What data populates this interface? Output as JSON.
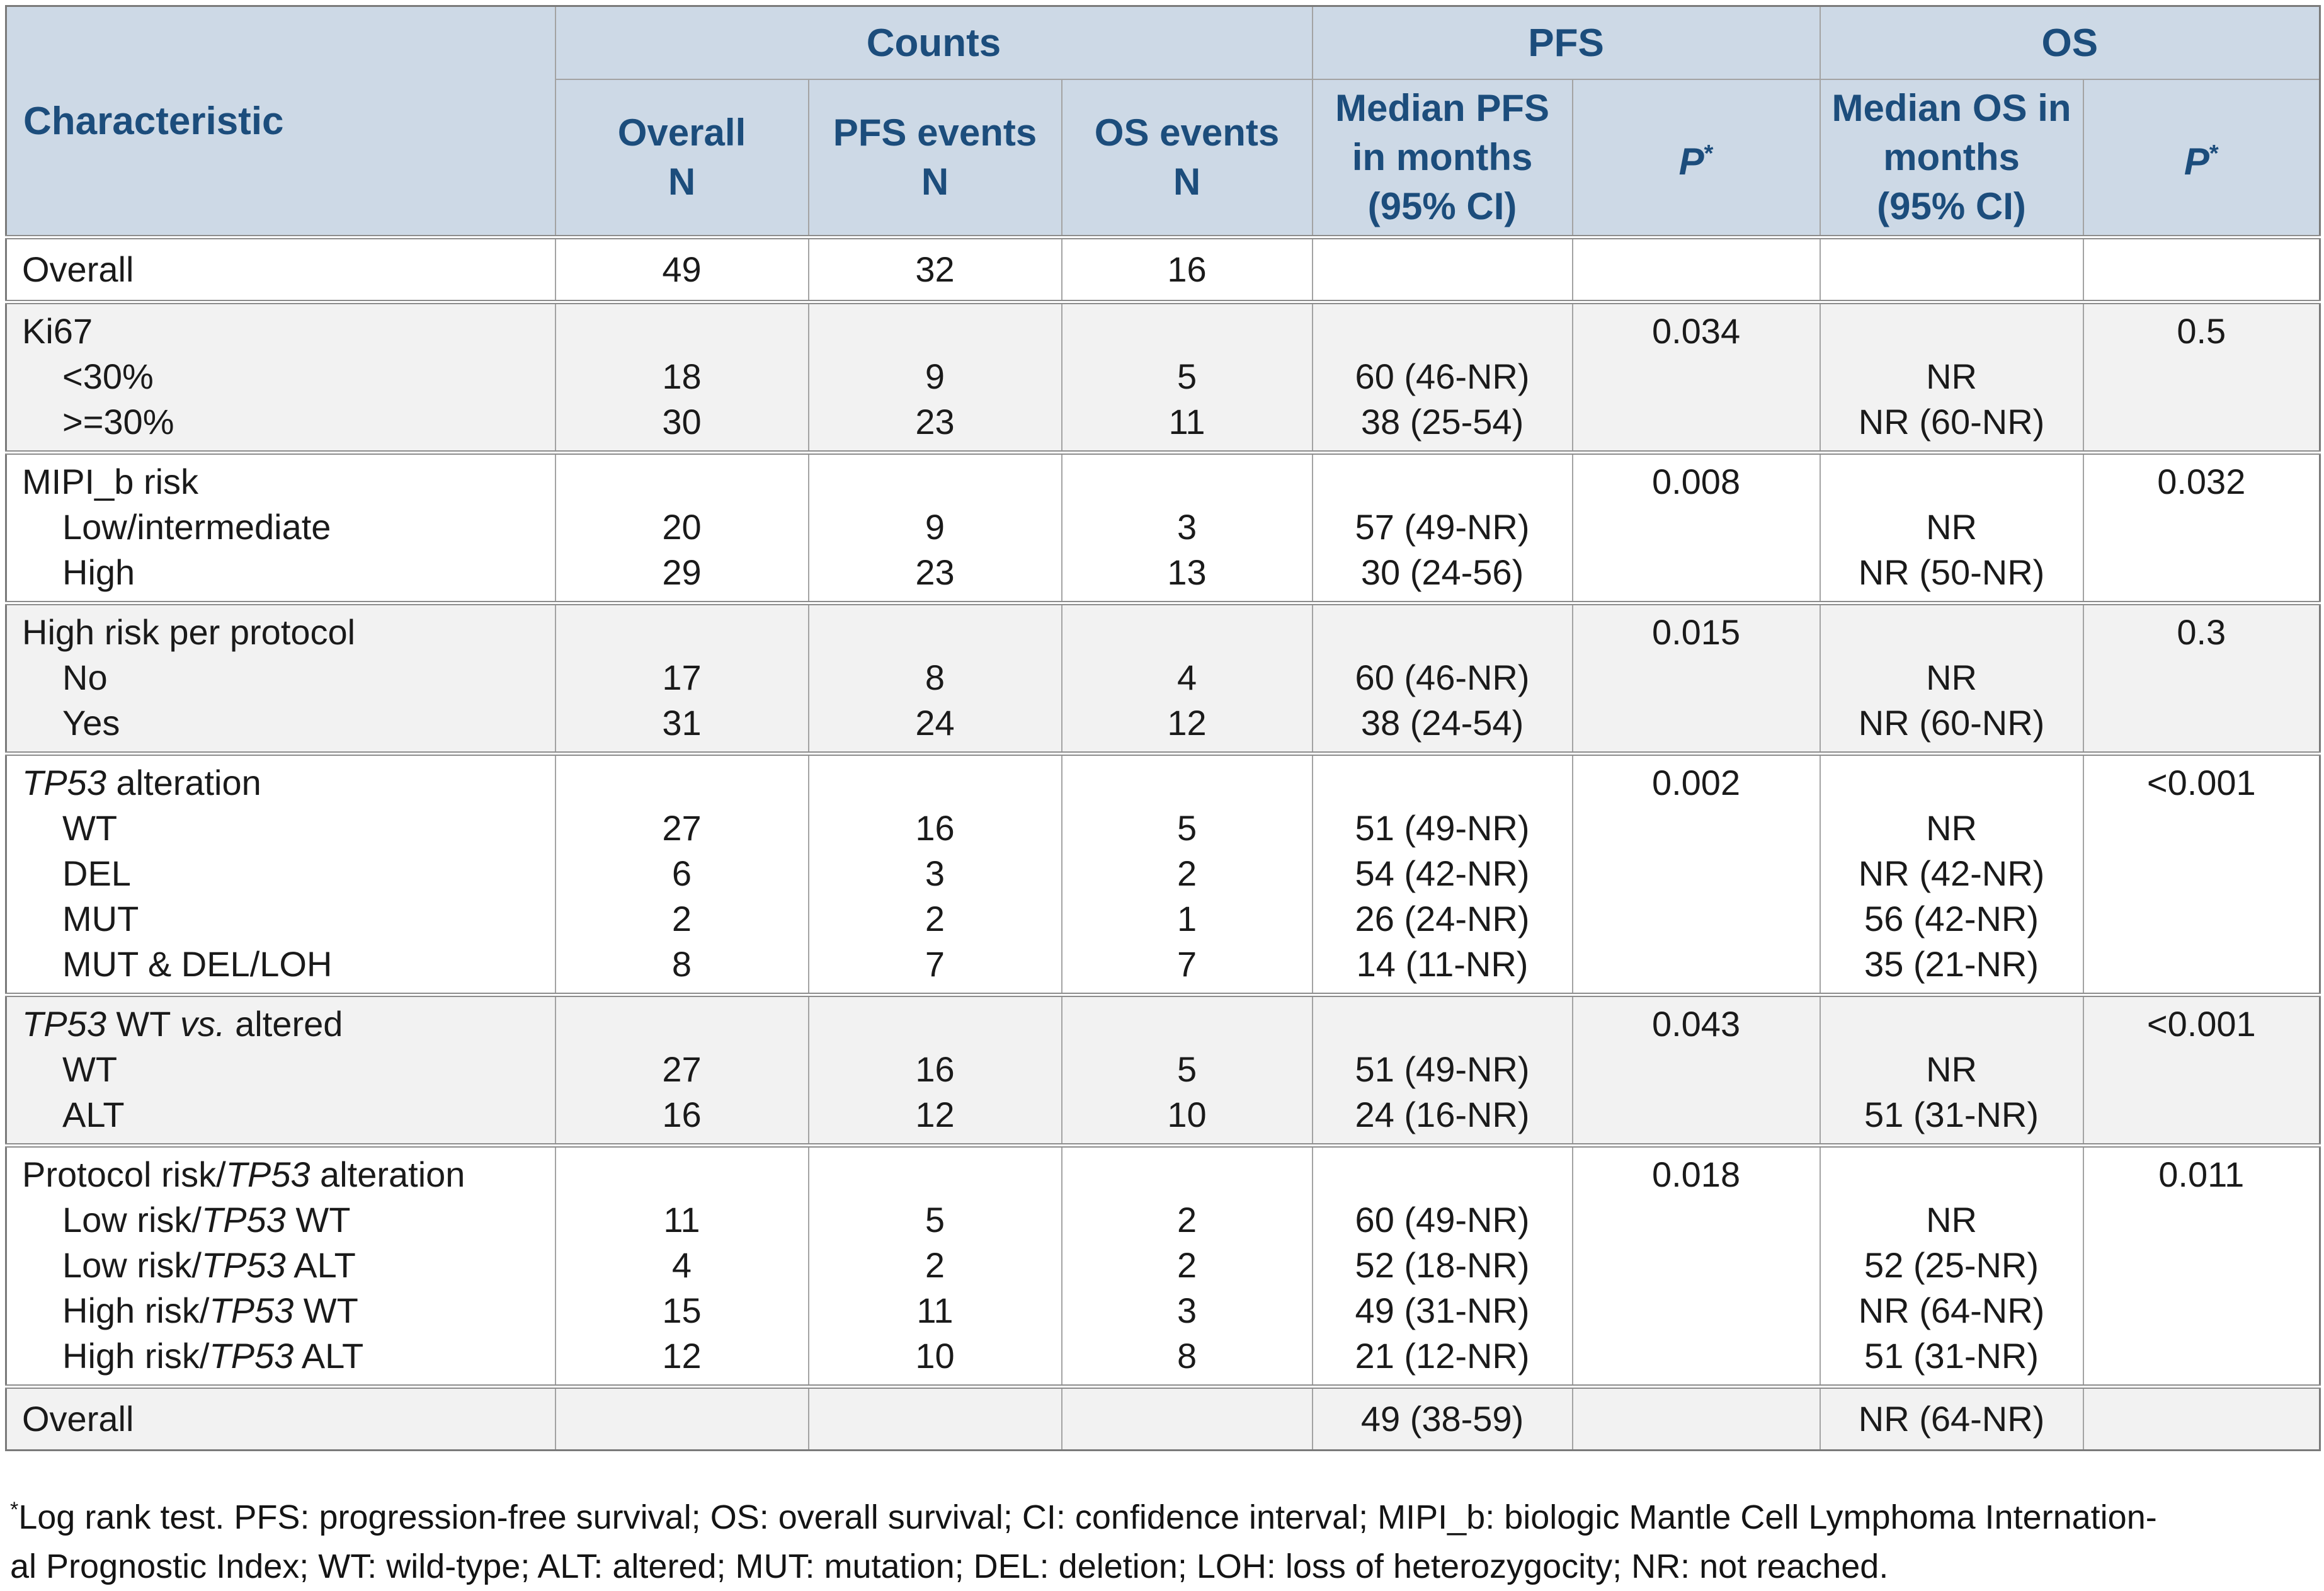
{
  "colors": {
    "header_bg": "#cdd9e6",
    "header_text": "#1c4d7c",
    "band_gray": "#f2f2f2",
    "border_inner": "#a3a3a3",
    "border_group": "#8c8c8c",
    "border_outer": "#7a7a7a",
    "body_text": "#1a1a1a"
  },
  "table": {
    "header": {
      "characteristic": "Characteristic",
      "top_groups": [
        {
          "label": "Counts",
          "colspan": 3
        },
        {
          "label": "PFS",
          "colspan": 2
        },
        {
          "label": "OS",
          "colspan": 2
        }
      ],
      "subheaders": [
        {
          "lines": [
            "Overall",
            "N"
          ]
        },
        {
          "lines": [
            "PFS events",
            "N"
          ]
        },
        {
          "lines": [
            "OS events",
            "N"
          ]
        },
        {
          "lines": [
            "Median PFS",
            "in months",
            "(95% CI)"
          ]
        },
        {
          "p": true,
          "label": "P",
          "sup": "*"
        },
        {
          "lines": [
            "Median OS in",
            "months",
            "(95% CI)"
          ]
        },
        {
          "p": true,
          "label": "P",
          "sup": "*"
        }
      ]
    },
    "groups": [
      {
        "shade": "white",
        "rows": [
          {
            "label": "Overall",
            "cells": [
              "49",
              "32",
              "16",
              "",
              "",
              "",
              ""
            ]
          }
        ]
      },
      {
        "shade": "gray",
        "rows": [
          {
            "label": "Ki67",
            "cells": [
              "",
              "",
              "",
              "",
              "0.034",
              "",
              "0.5"
            ]
          },
          {
            "label": "<30%",
            "indent": true,
            "cells": [
              "18",
              "9",
              "5",
              "60 (46-NR)",
              "",
              "NR",
              ""
            ]
          },
          {
            "label": ">=30%",
            "indent": true,
            "cells": [
              "30",
              "23",
              "11",
              "38 (25-54)",
              "",
              "NR (60-NR)",
              ""
            ]
          }
        ]
      },
      {
        "shade": "white",
        "rows": [
          {
            "label": "MIPI_b risk",
            "cells": [
              "",
              "",
              "",
              "",
              "0.008",
              "",
              "0.032"
            ]
          },
          {
            "label": "Low/intermediate",
            "indent": true,
            "cells": [
              "20",
              "9",
              "3",
              "57 (49-NR)",
              "",
              "NR",
              ""
            ]
          },
          {
            "label": "High",
            "indent": true,
            "cells": [
              "29",
              "23",
              "13",
              "30 (24-56)",
              "",
              "NR (50-NR)",
              ""
            ]
          }
        ]
      },
      {
        "shade": "gray",
        "rows": [
          {
            "label": "High risk per protocol",
            "cells": [
              "",
              "",
              "",
              "",
              "0.015",
              "",
              "0.3"
            ]
          },
          {
            "label": "No",
            "indent": true,
            "cells": [
              "17",
              "8",
              "4",
              "60 (46-NR)",
              "",
              "NR",
              ""
            ]
          },
          {
            "label": "Yes",
            "indent": true,
            "cells": [
              "31",
              "24",
              "12",
              "38 (24-54)",
              "",
              "NR (60-NR)",
              ""
            ]
          }
        ]
      },
      {
        "shade": "white",
        "rows": [
          {
            "label": [
              {
                "t": "TP53",
                "i": 1
              },
              {
                "t": " alteration"
              }
            ],
            "cells": [
              "",
              "",
              "",
              "",
              "0.002",
              "",
              "<0.001"
            ]
          },
          {
            "label": "WT",
            "indent": true,
            "cells": [
              "27",
              "16",
              "5",
              "51 (49-NR)",
              "",
              "NR",
              ""
            ]
          },
          {
            "label": "DEL",
            "indent": true,
            "cells": [
              "6",
              "3",
              "2",
              "54 (42-NR)",
              "",
              "NR (42-NR)",
              ""
            ]
          },
          {
            "label": "MUT",
            "indent": true,
            "cells": [
              "2",
              "2",
              "1",
              "26 (24-NR)",
              "",
              "56 (42-NR)",
              ""
            ]
          },
          {
            "label": "MUT & DEL/LOH",
            "indent": true,
            "cells": [
              "8",
              "7",
              "7",
              "14 (11-NR)",
              "",
              "35 (21-NR)",
              ""
            ]
          }
        ]
      },
      {
        "shade": "gray",
        "rows": [
          {
            "label": [
              {
                "t": "TP53",
                "i": 1
              },
              {
                "t": " WT "
              },
              {
                "t": "vs.",
                "i": 1
              },
              {
                "t": " altered"
              }
            ],
            "cells": [
              "",
              "",
              "",
              "",
              "0.043",
              "",
              "<0.001"
            ]
          },
          {
            "label": "WT",
            "indent": true,
            "cells": [
              "27",
              "16",
              "5",
              "51 (49-NR)",
              "",
              "NR",
              ""
            ]
          },
          {
            "label": "ALT",
            "indent": true,
            "cells": [
              "16",
              "12",
              "10",
              "24 (16-NR)",
              "",
              "51 (31-NR)",
              ""
            ]
          }
        ]
      },
      {
        "shade": "white",
        "rows": [
          {
            "label": [
              {
                "t": "Protocol risk/"
              },
              {
                "t": "TP53",
                "i": 1
              },
              {
                "t": " alteration"
              }
            ],
            "cells": [
              "",
              "",
              "",
              "",
              "0.018",
              "",
              "0.011"
            ]
          },
          {
            "label": [
              {
                "t": "Low risk/"
              },
              {
                "t": "TP53",
                "i": 1
              },
              {
                "t": " WT"
              }
            ],
            "indent": true,
            "cells": [
              "11",
              "5",
              "2",
              "60 (49-NR)",
              "",
              "NR",
              ""
            ]
          },
          {
            "label": [
              {
                "t": "Low risk/"
              },
              {
                "t": "TP53",
                "i": 1
              },
              {
                "t": " ALT"
              }
            ],
            "indent": true,
            "cells": [
              "4",
              "2",
              "2",
              "52 (18-NR)",
              "",
              "52 (25-NR)",
              ""
            ]
          },
          {
            "label": [
              {
                "t": "High risk/"
              },
              {
                "t": "TP53",
                "i": 1
              },
              {
                "t": " WT"
              }
            ],
            "indent": true,
            "cells": [
              "15",
              "11",
              "3",
              "49 (31-NR)",
              "",
              "NR (64-NR)",
              ""
            ]
          },
          {
            "label": [
              {
                "t": "High risk/"
              },
              {
                "t": "TP53",
                "i": 1
              },
              {
                "t": " ALT"
              }
            ],
            "indent": true,
            "cells": [
              "12",
              "10",
              "8",
              "21 (12-NR)",
              "",
              "51 (31-NR)",
              ""
            ]
          }
        ]
      },
      {
        "shade": "gray",
        "rows": [
          {
            "label": "Overall",
            "cells": [
              "",
              "",
              "",
              "49 (38-59)",
              "",
              "NR (64-NR)",
              ""
            ]
          }
        ]
      }
    ]
  },
  "footnote": {
    "sup": "*",
    "lines": [
      "Log rank test. PFS: progression-free survival; OS: overall survival; CI: confidence interval; MIPI_b: biologic Mantle Cell Lymphoma Internation-",
      "al Prognostic Index; WT: wild-type; ALT: altered; MUT: mutation; DEL: deletion; LOH: loss of heterozygocity; NR: not reached."
    ]
  }
}
